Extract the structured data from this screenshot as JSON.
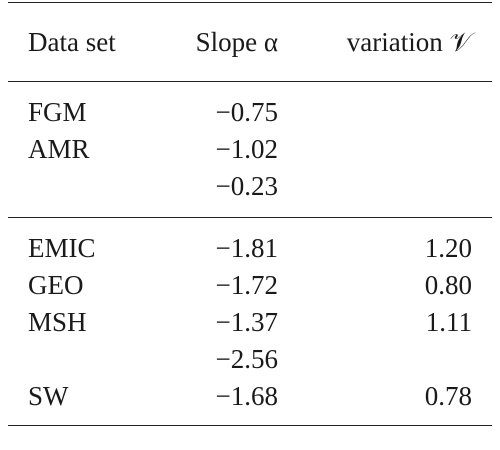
{
  "table": {
    "header": {
      "col1": "Data set",
      "col2": "Slope α",
      "col3": "variation 𝒱"
    },
    "group1": [
      {
        "dataset": "FGM",
        "slope": "−0.75",
        "variation": ""
      },
      {
        "dataset": "AMR",
        "slope": "−1.02",
        "variation": ""
      },
      {
        "dataset": "",
        "slope": "−0.23",
        "variation": ""
      }
    ],
    "group2": [
      {
        "dataset": "EMIC",
        "slope": "−1.81",
        "variation": "1.20"
      },
      {
        "dataset": "GEO",
        "slope": "−1.72",
        "variation": "0.80"
      },
      {
        "dataset": "MSH",
        "slope": "−1.37",
        "variation": "1.11"
      },
      {
        "dataset": "",
        "slope": "−2.56",
        "variation": ""
      },
      {
        "dataset": "SW",
        "slope": "−1.68",
        "variation": "0.78"
      }
    ]
  }
}
